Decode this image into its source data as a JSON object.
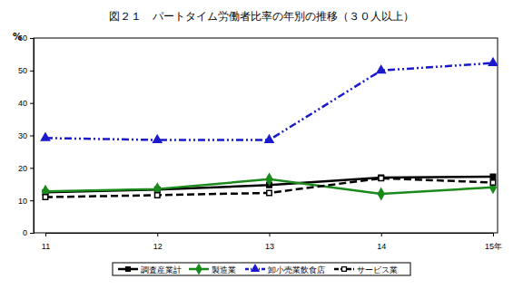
{
  "chart_data": {
    "type": "line",
    "title": "図２１　パートタイム労働者比率の年別の推移（３０人以上）",
    "y_label": "%",
    "categories": [
      "11",
      "12",
      "13",
      "14",
      "15年"
    ],
    "series": [
      {
        "name": "調査産業計",
        "color": "#000000",
        "marker": "square",
        "line_style": "solid",
        "values": [
          12.5,
          13.3,
          14.7,
          17.0,
          17.3
        ]
      },
      {
        "name": "製造業",
        "color": "#1a8a1a",
        "marker": "diamond",
        "line_style": "solid",
        "values": [
          12.8,
          13.5,
          16.5,
          12.0,
          14.0
        ]
      },
      {
        "name": "卸小売業飲食店",
        "color": "#1a1acc",
        "marker": "triangle",
        "line_style": "dashdot",
        "values": [
          29.2,
          28.6,
          28.6,
          50.0,
          52.3
        ]
      },
      {
        "name": "サービス業",
        "color": "#000000",
        "marker": "square-open",
        "line_style": "dashed",
        "values": [
          11.0,
          11.6,
          12.3,
          16.8,
          15.5
        ]
      }
    ],
    "ylim": [
      0,
      60
    ],
    "yticks": [
      0,
      10,
      20,
      30,
      40,
      50,
      60
    ],
    "grid": false,
    "legend": "bottom"
  }
}
